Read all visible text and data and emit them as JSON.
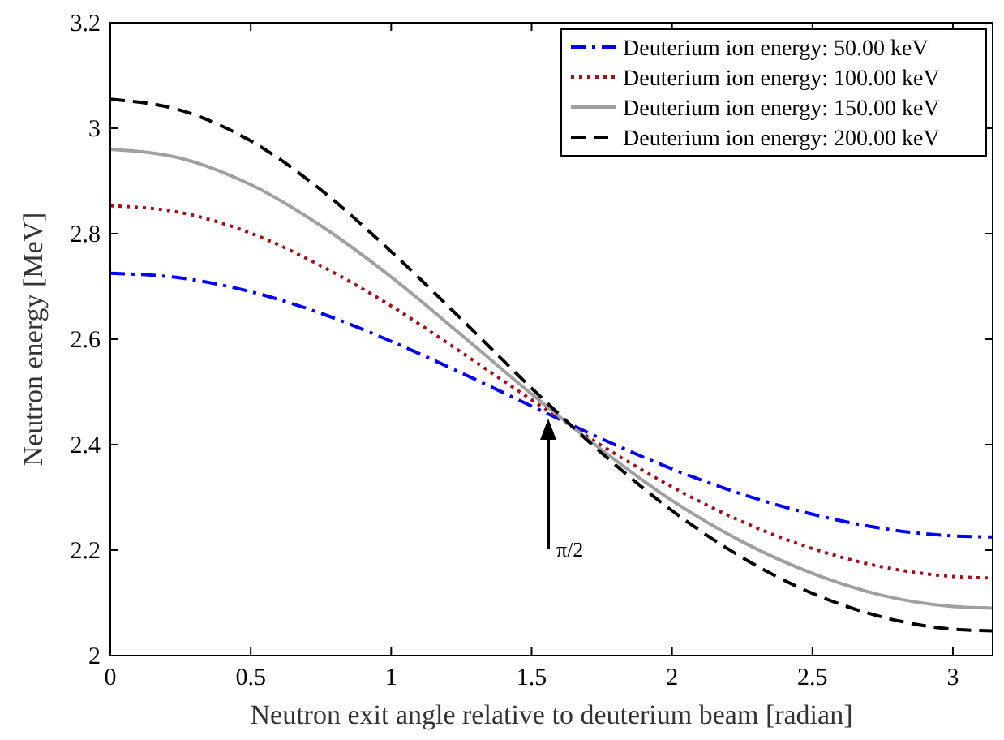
{
  "chart_data": {
    "type": "line",
    "xlabel": "Neutron exit angle relative to deuterium beam [radian]",
    "ylabel": "Neutron energy [MeV]",
    "x": [
      0,
      0.25,
      0.5,
      0.75,
      1,
      1.25,
      1.5,
      1.75,
      2,
      2.25,
      2.5,
      2.75,
      3,
      3.1416
    ],
    "series": [
      {
        "name": "Deuterium ion energy: 50.00 keV",
        "color": "#0000ff",
        "line_style": "dashdot",
        "values": [
          2.725,
          2.716,
          2.69,
          2.649,
          2.596,
          2.536,
          2.473,
          2.411,
          2.354,
          2.306,
          2.268,
          2.241,
          2.227,
          2.225
        ]
      },
      {
        "name": "Deuterium ion energy: 100.00 keV",
        "color": "#a50f15",
        "line_style": "dotted",
        "values": [
          2.853,
          2.84,
          2.801,
          2.739,
          2.663,
          2.575,
          2.485,
          2.398,
          2.32,
          2.254,
          2.203,
          2.168,
          2.15,
          2.147
        ]
      },
      {
        "name": "Deuterium ion energy: 150.00 keV",
        "color": "#a0a0a0",
        "line_style": "solid",
        "values": [
          2.96,
          2.943,
          2.893,
          2.815,
          2.718,
          2.608,
          2.496,
          2.39,
          2.294,
          2.216,
          2.156,
          2.114,
          2.093,
          2.09
        ]
      },
      {
        "name": "Deuterium ion energy: 200.00 keV",
        "color": "#000000",
        "line_style": "dashed",
        "values": [
          3.055,
          3.034,
          2.976,
          2.883,
          2.766,
          2.638,
          2.507,
          2.384,
          2.275,
          2.186,
          2.118,
          2.073,
          2.05,
          2.047
        ]
      }
    ],
    "xlim": [
      0,
      3.1416
    ],
    "xticks": [
      0,
      0.5,
      1,
      1.5,
      2,
      2.5,
      3
    ],
    "ylim": [
      2,
      3.2
    ],
    "yticks": [
      2,
      2.2,
      2.4,
      2.6,
      2.8,
      3,
      3.2
    ],
    "annotations": [
      "π/2"
    ],
    "legend": "top right",
    "grid": false
  }
}
